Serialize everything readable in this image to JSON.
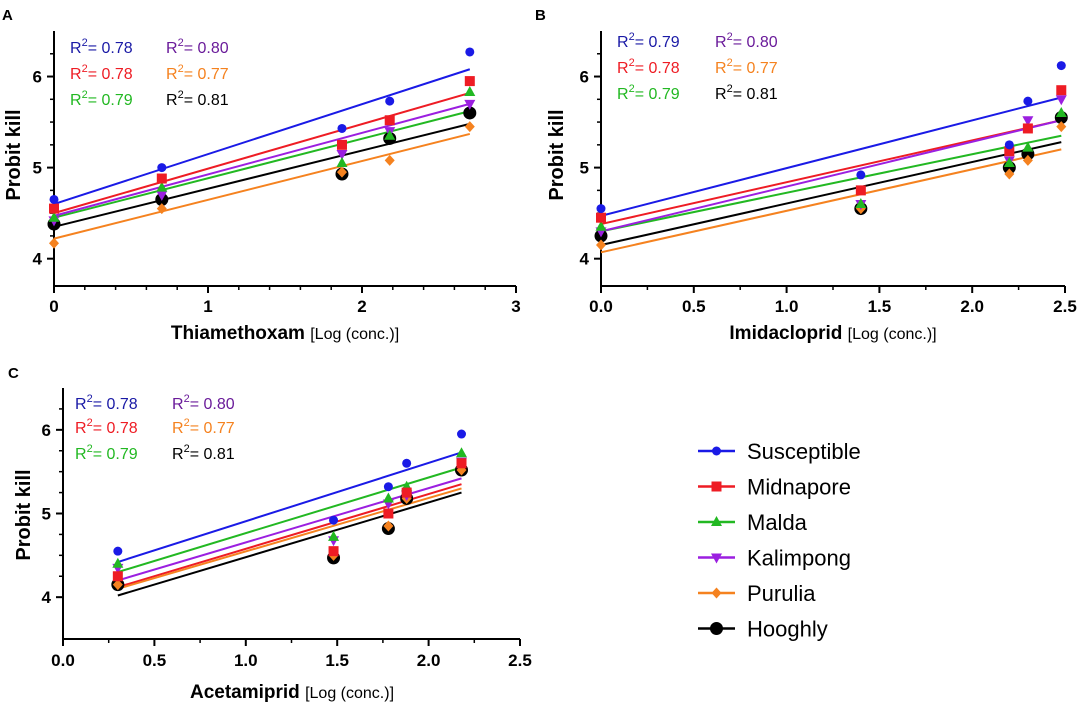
{
  "colors": {
    "Susceptible": "#1a1ae6",
    "Midnapore": "#ee1c24",
    "Malda": "#22b822",
    "Kalimpong": "#9b1fe0",
    "Purulia": "#f5821f",
    "Hooghly": "#000000",
    "r2_label": {
      "blue": "#1a1aa6",
      "red": "#ee1c24",
      "green": "#22b822",
      "purple": "#6a1b9a",
      "orange": "#f5821f",
      "black": "#000000"
    }
  },
  "legend": [
    {
      "name": "Susceptible",
      "marker": "circle"
    },
    {
      "name": "Midnapore",
      "marker": "square"
    },
    {
      "name": "Malda",
      "marker": "triangle-up"
    },
    {
      "name": "Kalimpong",
      "marker": "triangle-down"
    },
    {
      "name": "Purulia",
      "marker": "diamond"
    },
    {
      "name": "Hooghly",
      "marker": "circle-large"
    }
  ],
  "chart_data": [
    {
      "panel": "A",
      "type": "scatter",
      "xlabel_bold": "Thiamethoxam",
      "xlabel_rest": "[Log (conc.)]",
      "ylabel": "Probit kill",
      "xlim": [
        0,
        3
      ],
      "ylim": [
        3.7,
        6.5
      ],
      "xticks": [
        "0",
        "1",
        "2",
        "3"
      ],
      "yticks": [
        "4",
        "5",
        "6"
      ],
      "r2": [
        {
          "sup": "R",
          "power": "2",
          "text": "= 0.78",
          "color": "blue"
        },
        {
          "sup": "R",
          "power": "2",
          "text": "= 0.80",
          "color": "purple"
        },
        {
          "sup": "R",
          "power": "2",
          "text": "= 0.78",
          "color": "red"
        },
        {
          "sup": "R",
          "power": "2",
          "text": "= 0.77",
          "color": "orange"
        },
        {
          "sup": "R",
          "power": "2",
          "text": "= 0.79",
          "color": "green"
        },
        {
          "sup": "R",
          "power": "2",
          "text": "= 0.81",
          "color": "black"
        }
      ],
      "series": [
        {
          "name": "Susceptible",
          "x": [
            0,
            0.7,
            1.87,
            2.18,
            2.7
          ],
          "y": [
            4.65,
            5.0,
            5.43,
            5.73,
            6.27
          ],
          "fit": [
            [
              0,
              4.6
            ],
            [
              2.7,
              6.08
            ]
          ]
        },
        {
          "name": "Midnapore",
          "x": [
            0,
            0.7,
            1.87,
            2.18,
            2.7
          ],
          "y": [
            4.55,
            4.88,
            5.25,
            5.52,
            5.95
          ],
          "fit": [
            [
              0,
              4.5
            ],
            [
              2.7,
              5.82
            ]
          ]
        },
        {
          "name": "Malda",
          "x": [
            0,
            0.7,
            1.87,
            2.18,
            2.7
          ],
          "y": [
            4.45,
            4.78,
            5.05,
            5.35,
            5.83
          ],
          "fit": [
            [
              0,
              4.45
            ],
            [
              2.7,
              5.62
            ]
          ]
        },
        {
          "name": "Kalimpong",
          "x": [
            0,
            0.7,
            1.87,
            2.18,
            2.7
          ],
          "y": [
            4.42,
            4.7,
            5.15,
            5.4,
            5.7
          ],
          "fit": [
            [
              0,
              4.47
            ],
            [
              2.7,
              5.7
            ]
          ]
        },
        {
          "name": "Purulia",
          "x": [
            0,
            0.7,
            1.87,
            2.18,
            2.7
          ],
          "y": [
            4.17,
            4.55,
            4.95,
            5.08,
            5.45
          ],
          "fit": [
            [
              0,
              4.22
            ],
            [
              2.7,
              5.37
            ]
          ]
        },
        {
          "name": "Hooghly",
          "x": [
            0,
            0.7,
            1.87,
            2.18,
            2.7
          ],
          "y": [
            4.38,
            4.65,
            4.93,
            5.32,
            5.6
          ],
          "fit": [
            [
              0,
              4.35
            ],
            [
              2.7,
              5.48
            ]
          ]
        }
      ]
    },
    {
      "panel": "B",
      "type": "scatter",
      "xlabel_bold": "Imidacloprid",
      "xlabel_rest": "[Log (conc.)]",
      "ylabel": "Probit kill",
      "xlim": [
        0,
        2.5
      ],
      "ylim": [
        3.7,
        6.5
      ],
      "xticks": [
        "0.0",
        "0.5",
        "1.0",
        "1.5",
        "2.0",
        "2.5"
      ],
      "yticks": [
        "4",
        "5",
        "6"
      ],
      "r2": [
        {
          "sup": "R",
          "power": "2",
          "text": "= 0.79",
          "color": "blue"
        },
        {
          "sup": "R",
          "power": "2",
          "text": "= 0.80",
          "color": "purple"
        },
        {
          "sup": "R",
          "power": "2",
          "text": "= 0.78",
          "color": "red"
        },
        {
          "sup": "R",
          "power": "2",
          "text": "= 0.77",
          "color": "orange"
        },
        {
          "sup": "R",
          "power": "2",
          "text": "= 0.79",
          "color": "green"
        },
        {
          "sup": "R",
          "power": "2",
          "text": "= 0.81",
          "color": "black"
        }
      ],
      "series": [
        {
          "name": "Susceptible",
          "x": [
            0,
            1.4,
            2.2,
            2.3,
            2.48
          ],
          "y": [
            4.55,
            4.92,
            5.25,
            5.73,
            6.12
          ],
          "fit": [
            [
              0,
              4.47
            ],
            [
              2.48,
              5.77
            ]
          ]
        },
        {
          "name": "Midnapore",
          "x": [
            0,
            1.4,
            2.2,
            2.3,
            2.48
          ],
          "y": [
            4.45,
            4.75,
            5.18,
            5.43,
            5.85
          ],
          "fit": [
            [
              0,
              4.38
            ],
            [
              2.48,
              5.52
            ]
          ]
        },
        {
          "name": "Malda",
          "x": [
            0,
            1.4,
            2.2,
            2.3,
            2.48
          ],
          "y": [
            4.35,
            4.6,
            5.05,
            5.22,
            5.6
          ],
          "fit": [
            [
              0,
              4.3
            ],
            [
              2.48,
              5.35
            ]
          ]
        },
        {
          "name": "Kalimpong",
          "x": [
            0,
            1.4,
            2.2,
            2.3,
            2.48
          ],
          "y": [
            4.3,
            4.6,
            5.08,
            5.52,
            5.75
          ],
          "fit": [
            [
              0,
              4.3
            ],
            [
              2.48,
              5.52
            ]
          ]
        },
        {
          "name": "Purulia",
          "x": [
            0,
            1.4,
            2.2,
            2.3,
            2.48
          ],
          "y": [
            4.15,
            4.55,
            4.93,
            5.08,
            5.45
          ],
          "fit": [
            [
              0,
              4.07
            ],
            [
              2.48,
              5.2
            ]
          ]
        },
        {
          "name": "Hooghly",
          "x": [
            0,
            1.4,
            2.2,
            2.3,
            2.48
          ],
          "y": [
            4.25,
            4.55,
            5.0,
            5.15,
            5.55
          ],
          "fit": [
            [
              0,
              4.15
            ],
            [
              2.48,
              5.28
            ]
          ]
        }
      ]
    },
    {
      "panel": "C",
      "type": "scatter",
      "xlabel_bold": "Acetamiprid",
      "xlabel_rest": "[Log (conc.)]",
      "ylabel": "Probit kill",
      "xlim": [
        0,
        2.5
      ],
      "ylim": [
        3.5,
        6.5
      ],
      "xticks": [
        "0.0",
        "0.5",
        "1.0",
        "1.5",
        "2.0",
        "2.5"
      ],
      "yticks": [
        "4",
        "5",
        "6"
      ],
      "r2": [
        {
          "sup": "R",
          "power": "2",
          "text": "= 0.78",
          "color": "blue"
        },
        {
          "sup": "R",
          "power": "2",
          "text": "= 0.80",
          "color": "purple"
        },
        {
          "sup": "R",
          "power": "2",
          "text": "= 0.78",
          "color": "red"
        },
        {
          "sup": "R",
          "power": "2",
          "text": "= 0.77",
          "color": "orange"
        },
        {
          "sup": "R",
          "power": "2",
          "text": "= 0.79",
          "color": "green"
        },
        {
          "sup": "R",
          "power": "2",
          "text": "= 0.81",
          "color": "black"
        }
      ],
      "series": [
        {
          "name": "Susceptible",
          "x": [
            0.3,
            1.48,
            1.78,
            1.88,
            2.18
          ],
          "y": [
            4.55,
            4.92,
            5.32,
            5.6,
            5.95
          ],
          "fit": [
            [
              0.3,
              4.42
            ],
            [
              2.18,
              5.73
            ]
          ]
        },
        {
          "name": "Midnapore",
          "x": [
            0.3,
            1.48,
            1.78,
            1.88,
            2.18
          ],
          "y": [
            4.25,
            4.55,
            5.0,
            5.25,
            5.6
          ],
          "fit": [
            [
              0.3,
              4.12
            ],
            [
              2.18,
              5.35
            ]
          ]
        },
        {
          "name": "Malda",
          "x": [
            0.3,
            1.48,
            1.78,
            1.88,
            2.18
          ],
          "y": [
            4.4,
            4.72,
            5.18,
            5.32,
            5.72
          ],
          "fit": [
            [
              0.3,
              4.3
            ],
            [
              2.18,
              5.55
            ]
          ]
        },
        {
          "name": "Kalimpong",
          "x": [
            0.3,
            1.48,
            1.78,
            1.88,
            2.18
          ],
          "y": [
            4.35,
            4.68,
            5.12,
            5.22,
            5.62
          ],
          "fit": [
            [
              0.3,
              4.2
            ],
            [
              2.18,
              5.42
            ]
          ]
        },
        {
          "name": "Purulia",
          "x": [
            0.3,
            1.48,
            1.78,
            1.88,
            2.18
          ],
          "y": [
            4.15,
            4.5,
            4.85,
            5.18,
            5.52
          ],
          "fit": [
            [
              0.3,
              4.1
            ],
            [
              2.18,
              5.3
            ]
          ]
        },
        {
          "name": "Hooghly",
          "x": [
            0.3,
            1.48,
            1.78,
            1.88,
            2.18
          ],
          "y": [
            4.15,
            4.47,
            4.82,
            5.18,
            5.52
          ],
          "fit": [
            [
              0.3,
              4.02
            ],
            [
              2.18,
              5.25
            ]
          ]
        }
      ]
    }
  ]
}
